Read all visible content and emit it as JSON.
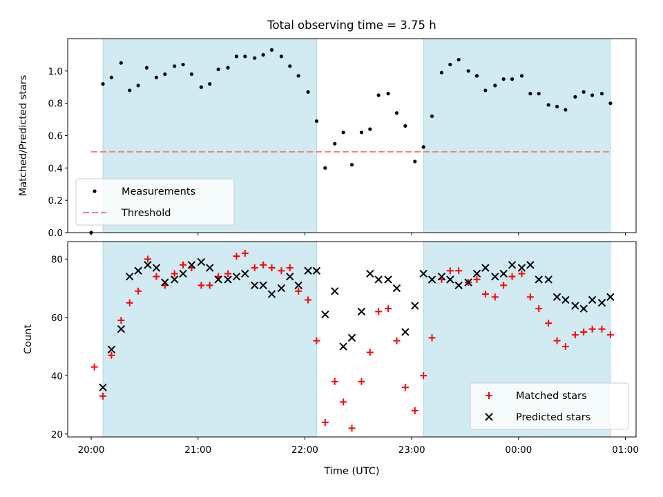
{
  "chart_data": [
    {
      "type": "scatter",
      "title": "Total observing time = 3.75 h",
      "xlabel": "",
      "ylabel": "Matched/Predicted stars",
      "x_unit": "hours after 20:00 UTC",
      "ylim": [
        0,
        1.2
      ],
      "yticks": [
        0.0,
        0.2,
        0.4,
        0.6,
        0.8,
        1.0
      ],
      "ytick_labels": [
        "0.0",
        "0.2",
        "0.4",
        "0.6",
        "0.8",
        "1.0"
      ],
      "shaded_intervals": [
        [
          0.11,
          2.11
        ],
        [
          3.11,
          4.86
        ]
      ],
      "shade_color": "#add8e6",
      "legend_location": "lower-left",
      "series": [
        {
          "name": "Measurements",
          "marker": "dot",
          "color": "#000000",
          "x": [
            0.0,
            0.11,
            0.19,
            0.28,
            0.36,
            0.44,
            0.52,
            0.61,
            0.69,
            0.78,
            0.86,
            0.94,
            1.03,
            1.11,
            1.19,
            1.28,
            1.36,
            1.44,
            1.53,
            1.61,
            1.69,
            1.78,
            1.86,
            1.94,
            2.03,
            2.11,
            2.19,
            2.28,
            2.36,
            2.44,
            2.53,
            2.61,
            2.69,
            2.78,
            2.86,
            2.94,
            3.03,
            3.11,
            3.19,
            3.28,
            3.36,
            3.44,
            3.53,
            3.61,
            3.69,
            3.78,
            3.86,
            3.94,
            4.03,
            4.11,
            4.19,
            4.28,
            4.36,
            4.44,
            4.53,
            4.61,
            4.69,
            4.78,
            4.86
          ],
          "y": [
            0.0,
            0.92,
            0.96,
            1.05,
            0.88,
            0.91,
            1.02,
            0.96,
            0.98,
            1.03,
            1.04,
            0.98,
            0.9,
            0.92,
            1.01,
            1.02,
            1.09,
            1.09,
            1.08,
            1.1,
            1.13,
            1.09,
            1.03,
            0.97,
            0.87,
            0.69,
            0.4,
            0.55,
            0.62,
            0.42,
            0.62,
            0.64,
            0.85,
            0.86,
            0.74,
            0.66,
            0.44,
            0.53,
            0.72,
            0.99,
            1.04,
            1.07,
            1.0,
            0.97,
            0.88,
            0.91,
            0.95,
            0.95,
            0.97,
            0.86,
            0.86,
            0.79,
            0.78,
            0.76,
            0.84,
            0.87,
            0.85,
            0.86,
            0.8
          ]
        },
        {
          "name": "Threshold",
          "marker": "dashed-line",
          "color": "#f08080",
          "x": [
            0.0,
            4.86
          ],
          "y": [
            0.5,
            0.5
          ]
        }
      ]
    },
    {
      "type": "scatter",
      "title": "",
      "xlabel": "Time (UTC)",
      "ylabel": "Count",
      "x_unit": "hours after 20:00 UTC",
      "xlim": [
        -0.22,
        5.1
      ],
      "xticks": [
        0,
        1,
        2,
        3,
        4,
        5
      ],
      "xtick_labels": [
        "20:00",
        "21:00",
        "22:00",
        "23:00",
        "00:00",
        "01:00"
      ],
      "ylim": [
        19,
        86
      ],
      "yticks": [
        20,
        40,
        60,
        80
      ],
      "ytick_labels": [
        "20",
        "40",
        "60",
        "80"
      ],
      "shaded_intervals": [
        [
          0.11,
          2.11
        ],
        [
          3.11,
          4.86
        ]
      ],
      "shade_color": "#add8e6",
      "legend_location": "lower-right",
      "series": [
        {
          "name": "Matched stars",
          "marker": "plus",
          "color": "#ff0000",
          "x": [
            0.03,
            0.11,
            0.19,
            0.28,
            0.36,
            0.44,
            0.53,
            0.61,
            0.69,
            0.78,
            0.86,
            0.94,
            1.03,
            1.11,
            1.19,
            1.28,
            1.36,
            1.44,
            1.53,
            1.61,
            1.69,
            1.78,
            1.86,
            1.94,
            2.03,
            2.11,
            2.19,
            2.28,
            2.36,
            2.44,
            2.53,
            2.61,
            2.69,
            2.78,
            2.86,
            2.94,
            3.03,
            3.11,
            3.19,
            3.28,
            3.36,
            3.44,
            3.53,
            3.61,
            3.69,
            3.78,
            3.86,
            3.94,
            4.03,
            4.11,
            4.19,
            4.28,
            4.36,
            4.44,
            4.53,
            4.61,
            4.69,
            4.78,
            4.86
          ],
          "y": [
            43,
            33,
            47,
            59,
            65,
            69,
            80,
            74,
            71,
            75,
            78,
            77,
            71,
            71,
            74,
            75,
            81,
            82,
            77,
            78,
            77,
            76,
            77,
            69,
            66,
            52,
            24,
            38,
            31,
            22,
            38,
            48,
            62,
            63,
            52,
            36,
            28,
            40,
            53,
            73,
            76,
            76,
            72,
            73,
            68,
            67,
            71,
            74,
            75,
            67,
            63,
            58,
            52,
            50,
            54,
            55,
            56,
            56,
            54
          ]
        },
        {
          "name": "Predicted stars",
          "marker": "x",
          "color": "#000000",
          "x": [
            0.11,
            0.19,
            0.28,
            0.36,
            0.44,
            0.53,
            0.61,
            0.69,
            0.78,
            0.86,
            0.94,
            1.03,
            1.11,
            1.19,
            1.28,
            1.36,
            1.44,
            1.53,
            1.61,
            1.69,
            1.78,
            1.86,
            1.94,
            2.03,
            2.11,
            2.19,
            2.28,
            2.36,
            2.44,
            2.53,
            2.61,
            2.69,
            2.78,
            2.86,
            2.94,
            3.03,
            3.11,
            3.19,
            3.28,
            3.36,
            3.44,
            3.53,
            3.61,
            3.69,
            3.78,
            3.86,
            3.94,
            4.03,
            4.11,
            4.19,
            4.28,
            4.36,
            4.44,
            4.53,
            4.61,
            4.69,
            4.78,
            4.86
          ],
          "y": [
            36,
            49,
            56,
            74,
            76,
            78,
            77,
            72,
            73,
            75,
            78,
            79,
            77,
            73,
            73,
            74,
            75,
            71,
            71,
            68,
            70,
            74,
            71,
            76,
            76,
            61,
            69,
            50,
            53,
            62,
            75,
            73,
            73,
            70,
            55,
            64,
            75,
            73,
            74,
            73,
            71,
            72,
            75,
            77,
            74,
            75,
            78,
            77,
            78,
            73,
            73,
            67,
            66,
            64,
            63,
            66,
            65,
            67
          ]
        }
      ]
    }
  ]
}
